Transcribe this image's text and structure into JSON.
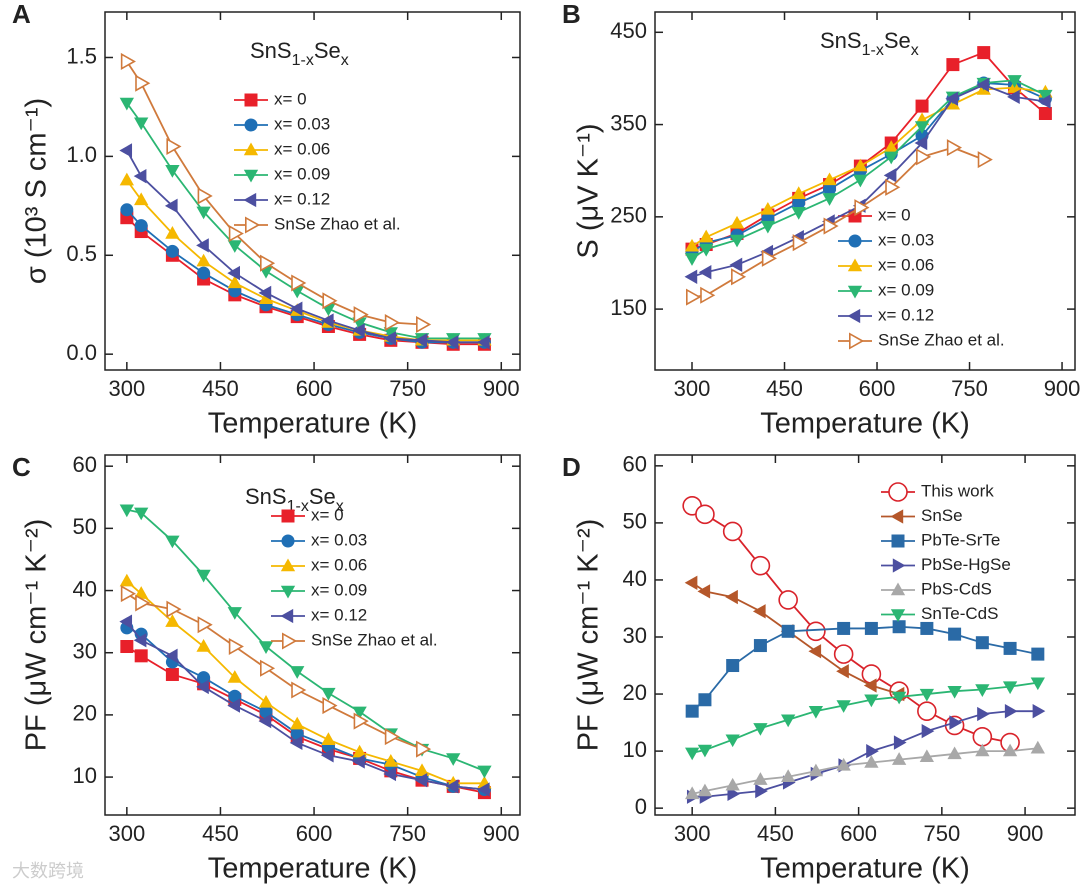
{
  "chart_data": [
    {
      "type": "line",
      "panel": "A",
      "ylabel": "σ (10³ S cm⁻¹)",
      "xlabel": "Temperature (K)",
      "annotation_parts": [
        "SnS",
        "1-x",
        "Se",
        "x"
      ],
      "legend": "upper right",
      "xlim": [
        265,
        930
      ],
      "xticks": [
        300,
        450,
        600,
        750,
        900
      ],
      "ylim": [
        -0.08,
        1.73
      ],
      "yticks": [
        {
          "value": 0,
          "label": "0.0"
        },
        0.5,
        {
          "value": 1,
          "label": "1.0"
        },
        1.5
      ],
      "series": [
        {
          "name": "x= 0",
          "color": "#e8202a",
          "marker": "square",
          "x": [
            300,
            323,
            373,
            423,
            473,
            523,
            573,
            623,
            673,
            723,
            773,
            823,
            873
          ],
          "values": [
            0.69,
            0.62,
            0.5,
            0.38,
            0.3,
            0.24,
            0.19,
            0.14,
            0.1,
            0.07,
            0.06,
            0.05,
            0.05
          ]
        },
        {
          "name": "x= 0.03",
          "color": "#1f6fb5",
          "marker": "circle",
          "x": [
            300,
            323,
            373,
            423,
            473,
            523,
            573,
            623,
            673,
            723,
            773,
            823,
            873
          ],
          "values": [
            0.73,
            0.65,
            0.52,
            0.41,
            0.32,
            0.25,
            0.2,
            0.15,
            0.11,
            0.08,
            0.06,
            0.06,
            0.06
          ]
        },
        {
          "name": "x= 0.06",
          "color": "#f5b800",
          "marker": "up",
          "x": [
            300,
            323,
            373,
            423,
            473,
            523,
            573,
            623,
            673,
            723,
            773,
            823,
            873
          ],
          "values": [
            0.88,
            0.78,
            0.61,
            0.47,
            0.36,
            0.28,
            0.22,
            0.16,
            0.12,
            0.09,
            0.07,
            0.07,
            0.07
          ]
        },
        {
          "name": "x= 0.09",
          "color": "#2bb673",
          "marker": "down",
          "x": [
            300,
            323,
            373,
            423,
            473,
            523,
            573,
            623,
            673,
            723,
            773,
            823,
            873
          ],
          "values": [
            1.27,
            1.17,
            0.93,
            0.72,
            0.55,
            0.42,
            0.32,
            0.23,
            0.16,
            0.11,
            0.08,
            0.08,
            0.08
          ]
        },
        {
          "name": "x= 0.12",
          "color": "#4c4fa0",
          "marker": "left",
          "x": [
            300,
            323,
            373,
            423,
            473,
            523,
            573,
            623,
            673,
            723,
            773,
            823,
            873
          ],
          "values": [
            1.03,
            0.9,
            0.75,
            0.55,
            0.41,
            0.31,
            0.23,
            0.17,
            0.12,
            0.08,
            0.07,
            0.06,
            0.06
          ]
        },
        {
          "name": "SnSe  Zhao et al.",
          "color": "#d07a3c",
          "marker": "right",
          "open": true,
          "x": [
            300,
            323,
            373,
            423,
            473,
            523,
            573,
            623,
            673,
            723,
            773
          ],
          "values": [
            1.48,
            1.37,
            1.05,
            0.8,
            0.61,
            0.46,
            0.36,
            0.27,
            0.2,
            0.16,
            0.15
          ]
        }
      ]
    },
    {
      "type": "line",
      "panel": "B",
      "ylabel": "S (μV K⁻¹)",
      "xlabel": "Temperature (K)",
      "annotation_parts": [
        "SnS",
        "1-x",
        "Se",
        "x"
      ],
      "legend": "lower right",
      "xlim": [
        240,
        921
      ],
      "xticks": [
        300,
        450,
        600,
        750,
        900
      ],
      "ylim": [
        84,
        472
      ],
      "yticks": [
        150,
        250,
        350,
        450
      ],
      "series": [
        {
          "name": "x= 0",
          "color": "#e8202a",
          "marker": "square",
          "x": [
            300,
            323,
            373,
            423,
            473,
            523,
            573,
            623,
            673,
            723,
            773,
            823,
            873
          ],
          "values": [
            215,
            220,
            232,
            252,
            270,
            285,
            305,
            330,
            370,
            415,
            428,
            390,
            362
          ]
        },
        {
          "name": "x= 0.03",
          "color": "#1f6fb5",
          "marker": "circle",
          "x": [
            300,
            323,
            373,
            423,
            473,
            523,
            573,
            623,
            673,
            723,
            773,
            823,
            873
          ],
          "values": [
            212,
            222,
            230,
            248,
            265,
            280,
            300,
            318,
            338,
            378,
            395,
            393,
            378
          ]
        },
        {
          "name": "x= 0.06",
          "color": "#f5b800",
          "marker": "up",
          "x": [
            300,
            323,
            373,
            423,
            473,
            523,
            573,
            623,
            673,
            723,
            773,
            823,
            873
          ],
          "values": [
            218,
            228,
            243,
            258,
            275,
            290,
            305,
            325,
            355,
            372,
            388,
            390,
            385
          ]
        },
        {
          "name": "x= 0.09",
          "color": "#2bb673",
          "marker": "down",
          "x": [
            300,
            323,
            373,
            423,
            473,
            523,
            573,
            623,
            673,
            723,
            773,
            823,
            873
          ],
          "values": [
            205,
            215,
            225,
            240,
            255,
            270,
            290,
            315,
            348,
            380,
            395,
            398,
            382
          ]
        },
        {
          "name": "x= 0.12",
          "color": "#4c4fa0",
          "marker": "left",
          "x": [
            300,
            323,
            373,
            423,
            473,
            523,
            573,
            623,
            673,
            723,
            773,
            823,
            873
          ],
          "values": [
            185,
            190,
            198,
            212,
            228,
            245,
            262,
            295,
            330,
            378,
            393,
            380,
            375
          ]
        },
        {
          "name": "SnSe Zhao et al.",
          "color": "#d07a3c",
          "marker": "right",
          "open": true,
          "x": [
            300,
            323,
            373,
            423,
            473,
            523,
            573,
            623,
            673,
            723,
            773
          ],
          "values": [
            163,
            165,
            185,
            205,
            222,
            240,
            260,
            282,
            315,
            325,
            312
          ]
        }
      ]
    },
    {
      "type": "line",
      "panel": "C",
      "ylabel": "PF (μW cm⁻¹ K⁻²)",
      "xlabel": "Temperature (K)",
      "annotation_parts": [
        "SnS",
        "1-x",
        "Se",
        "x"
      ],
      "legend": "upper right",
      "xlim": [
        265,
        930
      ],
      "xticks": [
        300,
        450,
        600,
        750,
        900
      ],
      "ylim": [
        3.9,
        61.8
      ],
      "yticks": [
        10,
        20,
        30,
        40,
        50,
        60
      ],
      "series": [
        {
          "name": "x= 0",
          "color": "#e8202a",
          "marker": "square",
          "x": [
            300,
            323,
            373,
            423,
            473,
            523,
            573,
            623,
            673,
            723,
            773,
            823,
            873
          ],
          "values": [
            31,
            29.5,
            26.5,
            25,
            22.5,
            20,
            16.5,
            14.5,
            13,
            11,
            9.5,
            8.5,
            7.5
          ]
        },
        {
          "name": "x= 0.03",
          "color": "#1f6fb5",
          "marker": "circle",
          "x": [
            300,
            323,
            373,
            423,
            473,
            523,
            573,
            623,
            673,
            723,
            773,
            823,
            873
          ],
          "values": [
            34,
            33,
            28.5,
            26,
            23,
            20.5,
            17,
            15,
            13,
            12,
            10,
            8.5,
            8
          ]
        },
        {
          "name": "x= 0.06",
          "color": "#f5b800",
          "marker": "up",
          "x": [
            300,
            323,
            373,
            423,
            473,
            523,
            573,
            623,
            673,
            723,
            773,
            823,
            873
          ],
          "values": [
            41.5,
            39.5,
            35,
            31,
            26,
            22,
            18.5,
            16,
            14,
            12.5,
            11,
            9,
            9
          ]
        },
        {
          "name": "x= 0.09",
          "color": "#2bb673",
          "marker": "down",
          "x": [
            300,
            323,
            373,
            423,
            473,
            523,
            573,
            623,
            673,
            723,
            773,
            823,
            873
          ],
          "values": [
            53,
            52.5,
            48,
            42.5,
            36.5,
            31,
            27,
            23.5,
            20.5,
            17,
            14.5,
            13,
            11
          ]
        },
        {
          "name": "x= 0.12",
          "color": "#4c4fa0",
          "marker": "left",
          "x": [
            300,
            323,
            373,
            423,
            473,
            523,
            573,
            623,
            673,
            723,
            773,
            823,
            873
          ],
          "values": [
            35,
            32,
            29.5,
            24.5,
            21.5,
            19,
            15.5,
            13.5,
            12.5,
            10.5,
            9.5,
            8.5,
            8
          ]
        },
        {
          "name": "SnSe Zhao et al.",
          "color": "#d07a3c",
          "marker": "right",
          "open": true,
          "x": [
            300,
            323,
            373,
            423,
            473,
            523,
            573,
            623,
            673,
            723,
            773
          ],
          "values": [
            39.5,
            38,
            37,
            34.5,
            31,
            27.5,
            24,
            21.5,
            19,
            16.5,
            14.5
          ]
        }
      ]
    },
    {
      "type": "line",
      "panel": "D",
      "ylabel": "PF (μW cm⁻¹ K⁻²)",
      "xlabel": "Temperature (K)",
      "legend": "upper right",
      "xlim": [
        233,
        990
      ],
      "xticks": [
        300,
        450,
        600,
        750,
        900
      ],
      "ylim": [
        -1.2,
        61.9
      ],
      "yticks": [
        0,
        10,
        20,
        30,
        40,
        50,
        60
      ],
      "series": [
        {
          "name": "This work",
          "color": "#d9232b",
          "marker": "circle",
          "open": true,
          "big": true,
          "x": [
            300,
            323,
            373,
            423,
            473,
            523,
            573,
            623,
            673,
            723,
            773,
            823,
            873
          ],
          "values": [
            53,
            51.5,
            48.5,
            42.5,
            36.5,
            31,
            27,
            23.5,
            20.5,
            17,
            14.5,
            12.5,
            11.5
          ]
        },
        {
          "name": "SnSe",
          "color": "#b5572a",
          "marker": "left",
          "x": [
            300,
            323,
            373,
            423,
            473,
            523,
            573,
            623,
            673
          ],
          "values": [
            39.5,
            38,
            37,
            34.5,
            31,
            27.5,
            24,
            21.5,
            20
          ]
        },
        {
          "name": "PbTe-SrTe",
          "color": "#2a6aa6",
          "marker": "square",
          "x": [
            300,
            323,
            373,
            423,
            473,
            573,
            623,
            673,
            723,
            773,
            823,
            873,
            923
          ],
          "values": [
            17,
            19,
            25,
            28.5,
            31,
            31.5,
            31.5,
            31.8,
            31.5,
            30.5,
            29,
            28,
            27
          ]
        },
        {
          "name": "PbSe-HgSe",
          "color": "#4c4fa0",
          "marker": "right",
          "x": [
            300,
            323,
            373,
            423,
            473,
            523,
            573,
            623,
            673,
            723,
            773,
            823,
            873,
            923
          ],
          "values": [
            2,
            2,
            2.5,
            3,
            4.5,
            6,
            7.5,
            10,
            11.5,
            13.5,
            15,
            16.5,
            17,
            17
          ]
        },
        {
          "name": "PbS-CdS",
          "color": "#a8a8a8",
          "marker": "up",
          "x": [
            300,
            323,
            373,
            423,
            473,
            523,
            573,
            623,
            673,
            723,
            773,
            823,
            873,
            923
          ],
          "values": [
            2.5,
            3,
            4,
            5,
            5.5,
            6.5,
            7.5,
            8,
            8.5,
            9,
            9.5,
            10,
            10,
            10.5
          ]
        },
        {
          "name": "SnTe-CdS",
          "color": "#2bb673",
          "marker": "down",
          "x": [
            300,
            323,
            373,
            423,
            473,
            523,
            573,
            623,
            673,
            723,
            773,
            823,
            873,
            923
          ],
          "values": [
            9.7,
            10.2,
            12,
            14,
            15.5,
            17,
            18,
            19,
            19.5,
            20,
            20.5,
            20.8,
            21.3,
            22
          ]
        }
      ]
    }
  ],
  "watermark": "大数跨境"
}
